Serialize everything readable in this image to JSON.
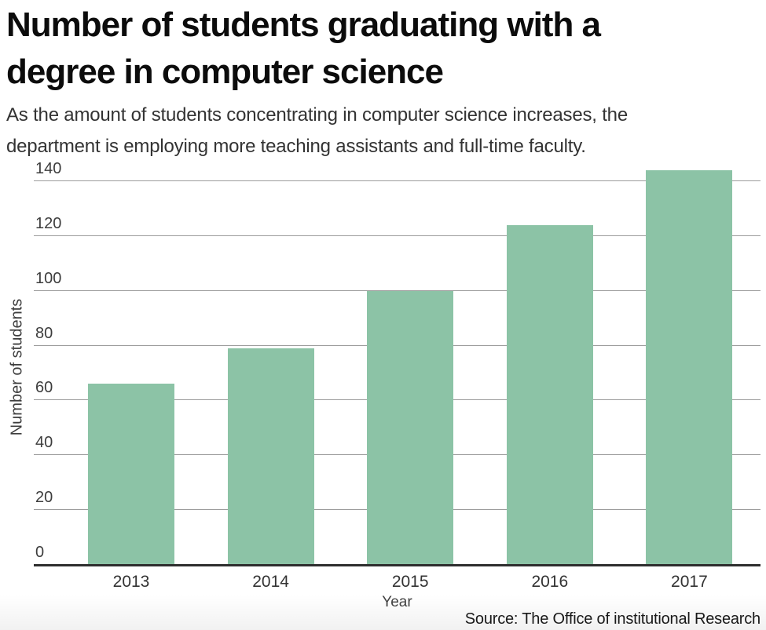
{
  "chart_data": {
    "type": "bar",
    "title": "Number of students graduating with a degree in computer science",
    "title_lines": [
      "Number of students graduating with a",
      "degree in computer science"
    ],
    "subtitle": "As the amount of students concentrating in computer science increases, the department is employing more teaching assistants and full-time faculty.",
    "subtitle_lines": [
      "As the amount of students concentrating in computer science increases, the",
      "department is employing more teaching assistants and full-time faculty."
    ],
    "categories": [
      "2013",
      "2014",
      "2015",
      "2016",
      "2017"
    ],
    "values": [
      66,
      79,
      100,
      124,
      144
    ],
    "xlabel": "Year",
    "ylabel": "Number of students",
    "ylim": [
      0,
      140
    ],
    "yticks": [
      0,
      20,
      40,
      60,
      80,
      100,
      120,
      140
    ],
    "grid": true,
    "legend": "none",
    "bar_color": "#8cc3a6",
    "gridline_color": "#9b9b9b",
    "axis_line_color": "#2e2e2e",
    "source": "Source: The Office of institutional Research"
  }
}
